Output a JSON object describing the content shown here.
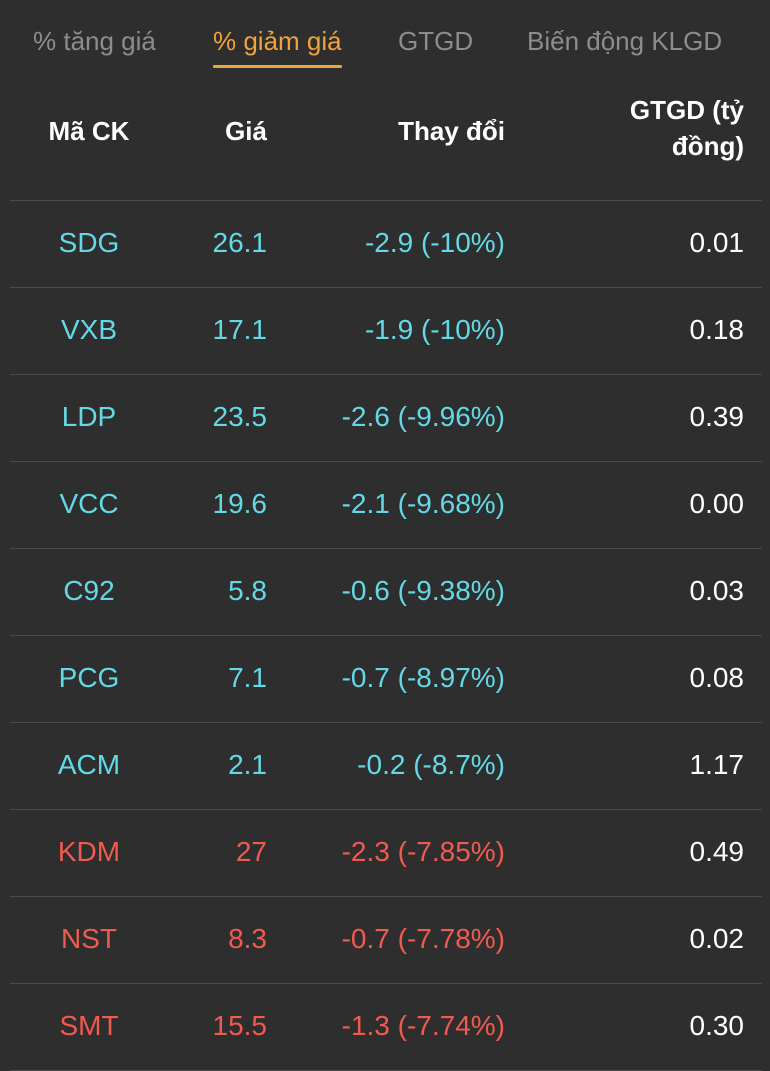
{
  "colors": {
    "active_tab": "#f0a33a",
    "inactive_tab": "#8d8d8d",
    "cyan": "#63d9e6",
    "red": "#f05a4f",
    "background": "#2e2e2e"
  },
  "tabs": [
    {
      "label": "% tăng giá",
      "active": false
    },
    {
      "label": "% giảm giá",
      "active": true
    },
    {
      "label": "GTGD",
      "active": false
    },
    {
      "label": "Biến động KLGD",
      "active": false
    }
  ],
  "table": {
    "headers": {
      "symbol": "Mã CK",
      "price": "Giá",
      "change": "Thay đổi",
      "value_line1": "GTGD (tỷ",
      "value_line2": "đồng)"
    },
    "rows": [
      {
        "symbol": "SDG",
        "price": "26.1",
        "change": "-2.9 (-10%)",
        "value": "0.01",
        "color": "cyan"
      },
      {
        "symbol": "VXB",
        "price": "17.1",
        "change": "-1.9 (-10%)",
        "value": "0.18",
        "color": "cyan"
      },
      {
        "symbol": "LDP",
        "price": "23.5",
        "change": "-2.6 (-9.96%)",
        "value": "0.39",
        "color": "cyan"
      },
      {
        "symbol": "VCC",
        "price": "19.6",
        "change": "-2.1 (-9.68%)",
        "value": "0.00",
        "color": "cyan"
      },
      {
        "symbol": "C92",
        "price": "5.8",
        "change": "-0.6 (-9.38%)",
        "value": "0.03",
        "color": "cyan"
      },
      {
        "symbol": "PCG",
        "price": "7.1",
        "change": "-0.7 (-8.97%)",
        "value": "0.08",
        "color": "cyan"
      },
      {
        "symbol": "ACM",
        "price": "2.1",
        "change": "-0.2 (-8.7%)",
        "value": "1.17",
        "color": "cyan"
      },
      {
        "symbol": "KDM",
        "price": "27",
        "change": "-2.3 (-7.85%)",
        "value": "0.49",
        "color": "red"
      },
      {
        "symbol": "NST",
        "price": "8.3",
        "change": "-0.7 (-7.78%)",
        "value": "0.02",
        "color": "red"
      },
      {
        "symbol": "SMT",
        "price": "15.5",
        "change": "-1.3 (-7.74%)",
        "value": "0.30",
        "color": "red"
      }
    ]
  }
}
